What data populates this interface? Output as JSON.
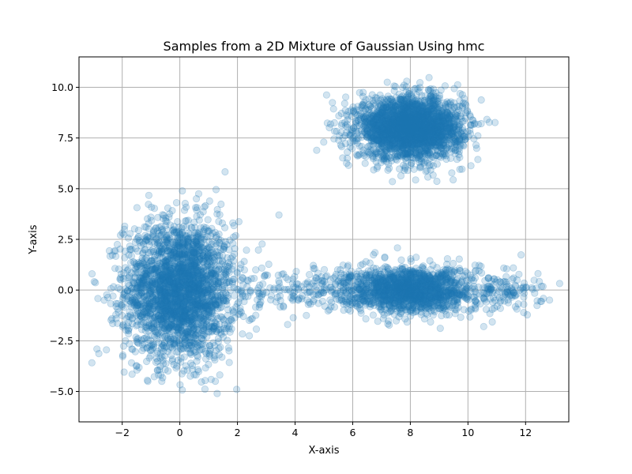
{
  "chart_data": {
    "type": "scatter",
    "title": "Samples from a 2D Mixture of Gaussian Using hmc",
    "xlabel": "X-axis",
    "ylabel": "Y-axis",
    "xlim": [
      -3.5,
      13.5
    ],
    "ylim": [
      -6.5,
      11.5
    ],
    "xticks": [
      -2,
      0,
      2,
      4,
      6,
      8,
      10,
      12
    ],
    "xtick_labels": [
      "−2",
      "0",
      "2",
      "4",
      "6",
      "8",
      "10",
      "12"
    ],
    "yticks": [
      -5.0,
      -2.5,
      0.0,
      2.5,
      5.0,
      7.5,
      10.0
    ],
    "ytick_labels": [
      "−5.0",
      "−2.5",
      "0.0",
      "2.5",
      "5.0",
      "7.5",
      "10.0"
    ],
    "grid": true,
    "marker_color": "#1f77b4",
    "marker_alpha": 0.2,
    "clusters": [
      {
        "center": [
          0,
          0
        ],
        "std": [
          0.95,
          1.7
        ],
        "count": 2600
      },
      {
        "center": [
          8,
          8
        ],
        "std": [
          0.9,
          0.75
        ],
        "count": 2600
      },
      {
        "center": [
          8,
          0
        ],
        "std": [
          1.05,
          0.55
        ],
        "count": 1500
      },
      {
        "center": [
          4.8,
          0
        ],
        "std": [
          1.2,
          0.55
        ],
        "count": 220
      },
      {
        "center": [
          11.2,
          0
        ],
        "std": [
          0.7,
          0.55
        ],
        "count": 140
      }
    ]
  }
}
